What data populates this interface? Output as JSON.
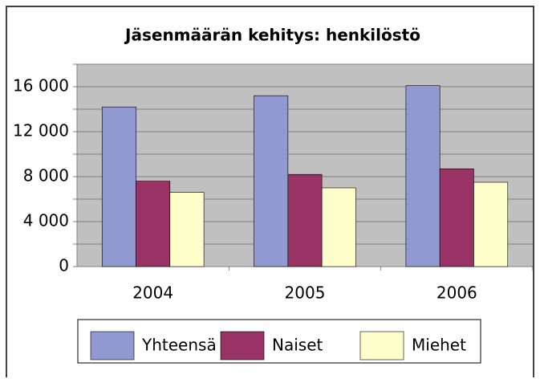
{
  "chart_data": {
    "type": "bar",
    "title": "Jäsenmäärän kehitys: henkilöstö",
    "categories": [
      "2004",
      "2005",
      "2006"
    ],
    "series": [
      {
        "name": "Yhteensä",
        "color": "#9099d0",
        "values": [
          14200,
          15200,
          16100
        ]
      },
      {
        "name": "Naiset",
        "color": "#993366",
        "values": [
          7600,
          8200,
          8700
        ]
      },
      {
        "name": "Miehet",
        "color": "#ffffcc",
        "values": [
          6600,
          7000,
          7500
        ]
      }
    ],
    "ylim": [
      0,
      18000
    ],
    "yticks": [
      0,
      {
        "value": 4000,
        "label": "4 000"
      },
      {
        "value": 8000,
        "label": "8 000"
      },
      {
        "value": 12000,
        "label": "12 000"
      },
      {
        "value": 16000,
        "label": "16 000"
      }
    ],
    "minor_yticks": [
      2000,
      6000,
      10000,
      14000,
      18000
    ],
    "grid": true,
    "legend": "bottom"
  }
}
